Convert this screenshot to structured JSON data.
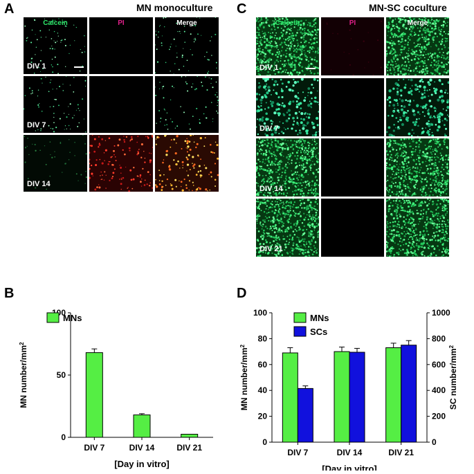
{
  "panels": {
    "A": {
      "letter": "A",
      "title": "MN monoculture",
      "columns": [
        "Calcein",
        "PI",
        "Merge"
      ],
      "rows": [
        "DIV 1",
        "DIV 7",
        "DIV 14"
      ]
    },
    "C": {
      "letter": "C",
      "title": "MN-SC coculture",
      "columns": [
        "Calcein",
        "PI",
        "Merge"
      ],
      "rows": [
        "DIV 1",
        "DIV 7",
        "DIV 14",
        "DIV 21"
      ]
    },
    "B": {
      "letter": "B"
    },
    "D": {
      "letter": "D"
    }
  },
  "colors": {
    "calcein": "#2ee86a",
    "pi": "#e0208a",
    "mn_bar": "#55ee44",
    "sc_bar": "#1111dd"
  },
  "chart_data": [
    {
      "type": "bar",
      "categories": [
        "DIV 7",
        "DIV 14",
        "DIV 21"
      ],
      "series": [
        {
          "name": "MNs",
          "values": [
            68,
            18,
            2.5
          ],
          "errors": [
            3,
            1,
            0
          ]
        }
      ],
      "ylabel": "MN number/mm",
      "ylabel_sup": "2",
      "xlabel": "[Day in vitro]",
      "ylim": [
        0,
        100
      ],
      "yticks": [
        0,
        50,
        100
      ],
      "legend": "top-left"
    },
    {
      "type": "bar",
      "categories": [
        "DIV 7",
        "DIV 14",
        "DIV 21"
      ],
      "series": [
        {
          "name": "MNs",
          "values": [
            69,
            70,
            73
          ],
          "errors": [
            4,
            3.5,
            3.5
          ],
          "axis": "left"
        },
        {
          "name": "SCs",
          "values": [
            415,
            695,
            750
          ],
          "errors": [
            20,
            30,
            35
          ],
          "axis": "right"
        }
      ],
      "ylabel": "MN number/mm",
      "ylabel_sup": "2",
      "y2label": "SC number/mm",
      "y2label_sup": "2",
      "xlabel": "[Day in vitro]",
      "ylim": [
        0,
        100
      ],
      "yticks": [
        0,
        20,
        40,
        60,
        80,
        100
      ],
      "y2lim": [
        0,
        1000
      ],
      "y2ticks": [
        0,
        200,
        400,
        600,
        800,
        1000
      ],
      "legend": "top-left"
    }
  ]
}
